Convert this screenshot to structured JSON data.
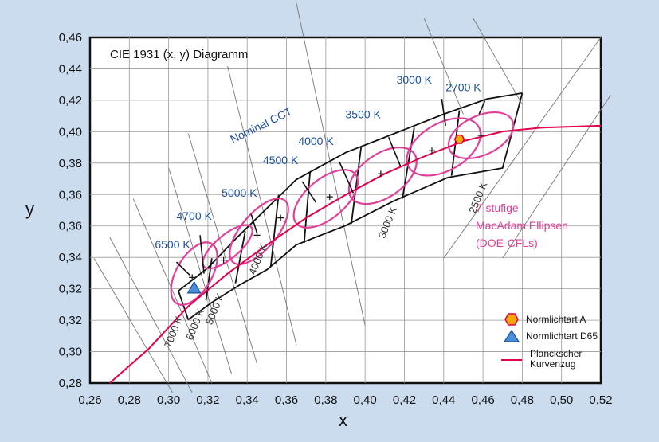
{
  "chart_data": {
    "type": "scatter",
    "title": "CIE 1931 (x, y) Diagramm",
    "xlabel": "x",
    "ylabel": "y",
    "xlim": [
      0.26,
      0.52
    ],
    "ylim": [
      0.28,
      0.46
    ],
    "x_ticks": [
      "0,26",
      "0,28",
      "0,30",
      "0,32",
      "0,34",
      "0,36",
      "0,38",
      "0,40",
      "0,42",
      "0,44",
      "0,46",
      "0,48",
      "0,50",
      "0,52"
    ],
    "y_ticks": [
      "0,28",
      "0,30",
      "0,32",
      "0,32",
      "0,34",
      "0,36",
      "0,36",
      "0,38",
      "0,40",
      "0,42",
      "0,44",
      "0,46"
    ],
    "grid": true,
    "nominal_cct_label": "Nominal CCT",
    "cct_labels": [
      {
        "text": "6500 K",
        "x": 0.302,
        "y": 0.35
      },
      {
        "text": "4700 K",
        "x": 0.313,
        "y": 0.365
      },
      {
        "text": "5000 K",
        "x": 0.336,
        "y": 0.377
      },
      {
        "text": "4500 K",
        "x": 0.357,
        "y": 0.394
      },
      {
        "text": "4000 K",
        "x": 0.375,
        "y": 0.404
      },
      {
        "text": "3500 K",
        "x": 0.399,
        "y": 0.418
      },
      {
        "text": "3000 K",
        "x": 0.425,
        "y": 0.436
      },
      {
        "text": "2700 K",
        "x": 0.45,
        "y": 0.432
      }
    ],
    "isotherm_labels": [
      "7000 K",
      "6000 K",
      "5000 K",
      "4000 K",
      "3000 K",
      "2500 K"
    ],
    "macadam_label": [
      "7-stufige",
      "MacAdam Ellipsen",
      "(DOE-CFLs)"
    ],
    "planck_locus": [
      [
        0.27,
        0.28
      ],
      [
        0.29,
        0.298
      ],
      [
        0.31,
        0.32
      ],
      [
        0.33,
        0.337
      ],
      [
        0.35,
        0.352
      ],
      [
        0.37,
        0.366
      ],
      [
        0.39,
        0.378
      ],
      [
        0.41,
        0.389
      ],
      [
        0.43,
        0.398
      ],
      [
        0.45,
        0.406
      ],
      [
        0.47,
        0.411
      ],
      [
        0.49,
        0.413
      ],
      [
        0.52,
        0.414
      ]
    ],
    "ellipses": [
      {
        "cct": "6500 K",
        "cx": 0.313,
        "cy": 0.337,
        "rx": 0.009,
        "ry": 0.018,
        "angle": -30
      },
      {
        "cct": "5000 K",
        "cx": 0.346,
        "cy": 0.359,
        "rx": 0.009,
        "ry": 0.021,
        "angle": -40
      },
      {
        "cct": "4000 K",
        "cx": 0.38,
        "cy": 0.376,
        "rx": 0.01,
        "ry": 0.02,
        "angle": -50
      },
      {
        "cct": "3500 K",
        "cx": 0.409,
        "cy": 0.388,
        "rx": 0.011,
        "ry": 0.02,
        "angle": -55
      },
      {
        "cct": "3000 K",
        "cx": 0.44,
        "cy": 0.403,
        "rx": 0.012,
        "ry": 0.021,
        "angle": -60
      },
      {
        "cct": "2700 K",
        "cx": 0.459,
        "cy": 0.409,
        "rx": 0.01,
        "ry": 0.018,
        "angle": -65
      }
    ],
    "centers": [
      [
        0.312,
        0.335
      ],
      [
        0.328,
        0.344
      ],
      [
        0.345,
        0.357
      ],
      [
        0.357,
        0.366
      ],
      [
        0.382,
        0.377
      ],
      [
        0.408,
        0.389
      ],
      [
        0.434,
        0.401
      ],
      [
        0.459,
        0.409
      ]
    ],
    "normlichtart_a": [
      0.448,
      0.407
    ],
    "normlichtart_d65": [
      0.313,
      0.329
    ],
    "legend": {
      "a": "Normlichtart A",
      "d65": "Normlichtart D65",
      "planck": [
        "Planckscher",
        "Kurvenzug"
      ]
    },
    "legend_position": "bottom-right",
    "colors": {
      "background": "#ccdcef",
      "plot_area": "#ffffff",
      "ellipse": "#e0409a",
      "planck": "#e2004a",
      "cct_label": "#1d4f9c",
      "normlichtart_a": "#f5a800",
      "d65": "#4a8fd8"
    }
  }
}
